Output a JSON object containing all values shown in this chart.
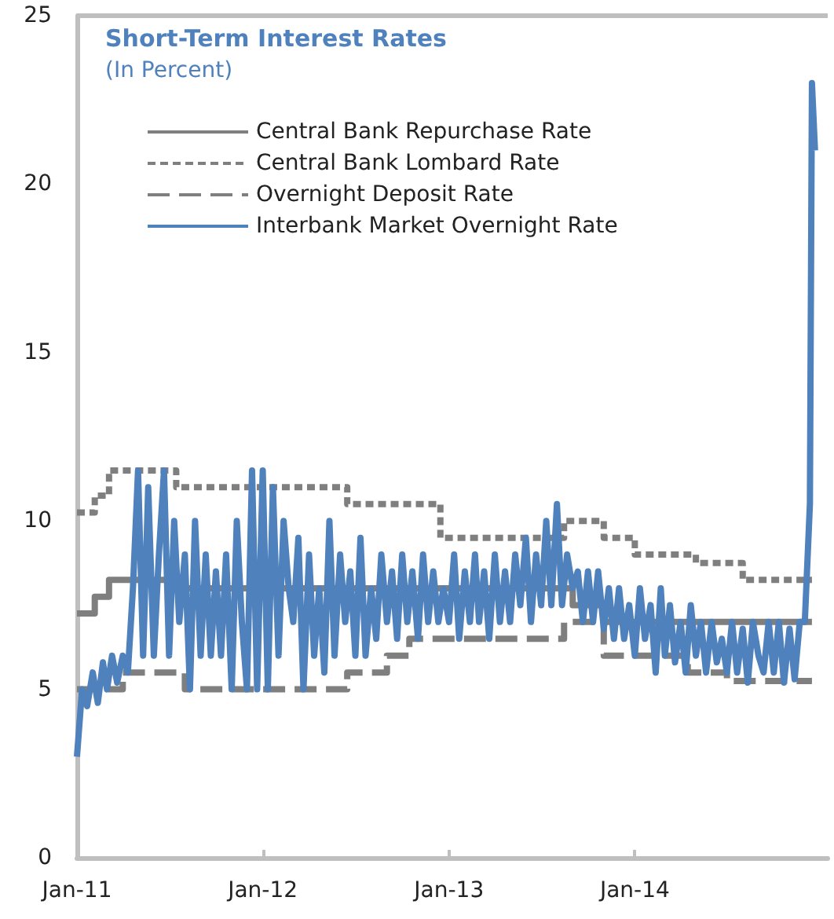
{
  "chart_data": {
    "type": "line",
    "title": "Short-Term Interest Rates",
    "subtitle": "(In Percent)",
    "xlim": [
      "2011-01-01",
      "2015-01-15"
    ],
    "xticks": [
      {
        "value": "2011-01-01",
        "label": "Jan-11"
      },
      {
        "value": "2012-01-01",
        "label": "Jan-12"
      },
      {
        "value": "2013-01-01",
        "label": "Jan-13"
      },
      {
        "value": "2014-01-01",
        "label": "Jan-14"
      }
    ],
    "ylim": [
      0,
      25
    ],
    "yticks": [
      0,
      5,
      10,
      15,
      20,
      25
    ],
    "grid": false,
    "legend": "top left",
    "marker": "none",
    "series": [
      {
        "name": "Central Bank Repurchase Rate",
        "type": "step",
        "line_style": "solid",
        "color": "#7f7f7f",
        "x": [
          "2011-01-01",
          "2011-02-05",
          "2011-03-05",
          "2011-07-15",
          "2013-09-01",
          "2013-11-01",
          "2014-12-15"
        ],
        "values": [
          7.25,
          7.75,
          8.25,
          8.0,
          7.5,
          7.0,
          7.0
        ]
      },
      {
        "name": "Central Bank Lombard Rate",
        "type": "step",
        "line_style": "dotted",
        "color": "#7f7f7f",
        "x": [
          "2011-01-01",
          "2011-02-05",
          "2011-03-05",
          "2011-07-15",
          "2012-06-15",
          "2012-12-15",
          "2013-08-15",
          "2013-11-01",
          "2014-01-01",
          "2014-05-01",
          "2014-08-01",
          "2014-12-15"
        ],
        "values": [
          10.25,
          10.75,
          11.5,
          11.0,
          10.5,
          9.5,
          10.0,
          9.5,
          9.0,
          8.75,
          8.25,
          8.25
        ]
      },
      {
        "name": "Overnight Deposit Rate",
        "type": "step",
        "line_style": "dashed",
        "color": "#7f7f7f",
        "x": [
          "2011-01-01",
          "2011-04-01",
          "2011-08-01",
          "2012-06-15",
          "2012-09-01",
          "2012-10-15",
          "2013-08-15",
          "2013-11-01",
          "2014-04-15",
          "2014-07-01",
          "2014-12-15"
        ],
        "values": [
          5.0,
          5.5,
          5.0,
          5.5,
          6.0,
          6.5,
          7.0,
          6.0,
          5.5,
          5.25,
          5.25
        ]
      },
      {
        "name": "Interbank Market Overnight Rate",
        "line_style": "solid",
        "color": "#4f81bd",
        "x": [
          "2011-01-01",
          "2011-01-11",
          "2011-01-21",
          "2011-02-01",
          "2011-02-11",
          "2011-02-21",
          "2011-03-01",
          "2011-03-11",
          "2011-03-21",
          "2011-04-01",
          "2011-04-11",
          "2011-04-21",
          "2011-05-01",
          "2011-05-11",
          "2011-05-21",
          "2011-06-01",
          "2011-06-11",
          "2011-06-21",
          "2011-07-01",
          "2011-07-11",
          "2011-07-21",
          "2011-08-01",
          "2011-08-11",
          "2011-08-21",
          "2011-09-01",
          "2011-09-11",
          "2011-09-21",
          "2011-10-01",
          "2011-10-11",
          "2011-10-21",
          "2011-11-01",
          "2011-11-11",
          "2011-11-21",
          "2011-12-01",
          "2011-12-11",
          "2011-12-21",
          "2012-01-01",
          "2012-01-11",
          "2012-01-21",
          "2012-02-01",
          "2012-02-11",
          "2012-02-21",
          "2012-03-01",
          "2012-03-11",
          "2012-03-21",
          "2012-04-01",
          "2012-04-11",
          "2012-04-21",
          "2012-05-01",
          "2012-05-11",
          "2012-05-21",
          "2012-06-01",
          "2012-06-11",
          "2012-06-21",
          "2012-07-01",
          "2012-07-11",
          "2012-07-21",
          "2012-08-01",
          "2012-08-11",
          "2012-08-21",
          "2012-09-01",
          "2012-09-11",
          "2012-09-21",
          "2012-10-01",
          "2012-10-11",
          "2012-10-21",
          "2012-11-01",
          "2012-11-11",
          "2012-11-21",
          "2012-12-01",
          "2012-12-11",
          "2012-12-21",
          "2013-01-01",
          "2013-01-11",
          "2013-01-21",
          "2013-02-01",
          "2013-02-11",
          "2013-02-21",
          "2013-03-01",
          "2013-03-11",
          "2013-03-21",
          "2013-04-01",
          "2013-04-11",
          "2013-04-21",
          "2013-05-01",
          "2013-05-11",
          "2013-05-21",
          "2013-06-01",
          "2013-06-11",
          "2013-06-21",
          "2013-07-01",
          "2013-07-11",
          "2013-07-21",
          "2013-08-01",
          "2013-08-11",
          "2013-08-21",
          "2013-09-01",
          "2013-09-11",
          "2013-09-21",
          "2013-10-01",
          "2013-10-11",
          "2013-10-21",
          "2013-11-01",
          "2013-11-11",
          "2013-11-21",
          "2013-12-01",
          "2013-12-11",
          "2013-12-21",
          "2014-01-01",
          "2014-01-11",
          "2014-01-21",
          "2014-02-01",
          "2014-02-11",
          "2014-02-21",
          "2014-03-01",
          "2014-03-11",
          "2014-03-21",
          "2014-04-01",
          "2014-04-11",
          "2014-04-21",
          "2014-05-01",
          "2014-05-11",
          "2014-05-21",
          "2014-06-01",
          "2014-06-11",
          "2014-06-21",
          "2014-07-01",
          "2014-07-11",
          "2014-07-21",
          "2014-08-01",
          "2014-08-11",
          "2014-08-21",
          "2014-09-01",
          "2014-09-11",
          "2014-09-21",
          "2014-10-01",
          "2014-10-11",
          "2014-10-21",
          "2014-11-01",
          "2014-11-11",
          "2014-11-21",
          "2014-12-01",
          "2014-12-11",
          "2014-12-15",
          "2014-12-21"
        ],
        "values": [
          3,
          5,
          4.5,
          5.5,
          4.6,
          5.8,
          5,
          6,
          5.2,
          6,
          5.5,
          8,
          11.5,
          6,
          11,
          6,
          9,
          11.5,
          6,
          10,
          7,
          9,
          5,
          10,
          6,
          9,
          6,
          8.5,
          6,
          9,
          5,
          10,
          7,
          5,
          11.5,
          5,
          11.5,
          5,
          11,
          6,
          10,
          8,
          7,
          9.5,
          5,
          9,
          6,
          8,
          5.5,
          10,
          6,
          9,
          7,
          8.5,
          6,
          9.5,
          6,
          8,
          6.5,
          9,
          7,
          8.5,
          6.5,
          9,
          7,
          8.5,
          6.5,
          9,
          7,
          8.5,
          7,
          8,
          7,
          9,
          6.5,
          8.5,
          7,
          9,
          7,
          8.5,
          6.5,
          9,
          7,
          8.5,
          7,
          9,
          7.5,
          9.5,
          7,
          9,
          7.5,
          10,
          7.5,
          10.5,
          7.5,
          9,
          8,
          8.5,
          7,
          8.5,
          7,
          8.5,
          6.8,
          8,
          6.5,
          8,
          6.5,
          7.5,
          6,
          8,
          6.5,
          7.5,
          5.5,
          8,
          6,
          7.5,
          5.8,
          7,
          5.5,
          7.5,
          6,
          7,
          5.5,
          7,
          5.8,
          6.5,
          5.5,
          7,
          5.5,
          6.8,
          5.2,
          7,
          6,
          5.5,
          7,
          5.5,
          7,
          5.2,
          6.8,
          5.3,
          7,
          7,
          10.5,
          23,
          21
        ]
      }
    ]
  }
}
